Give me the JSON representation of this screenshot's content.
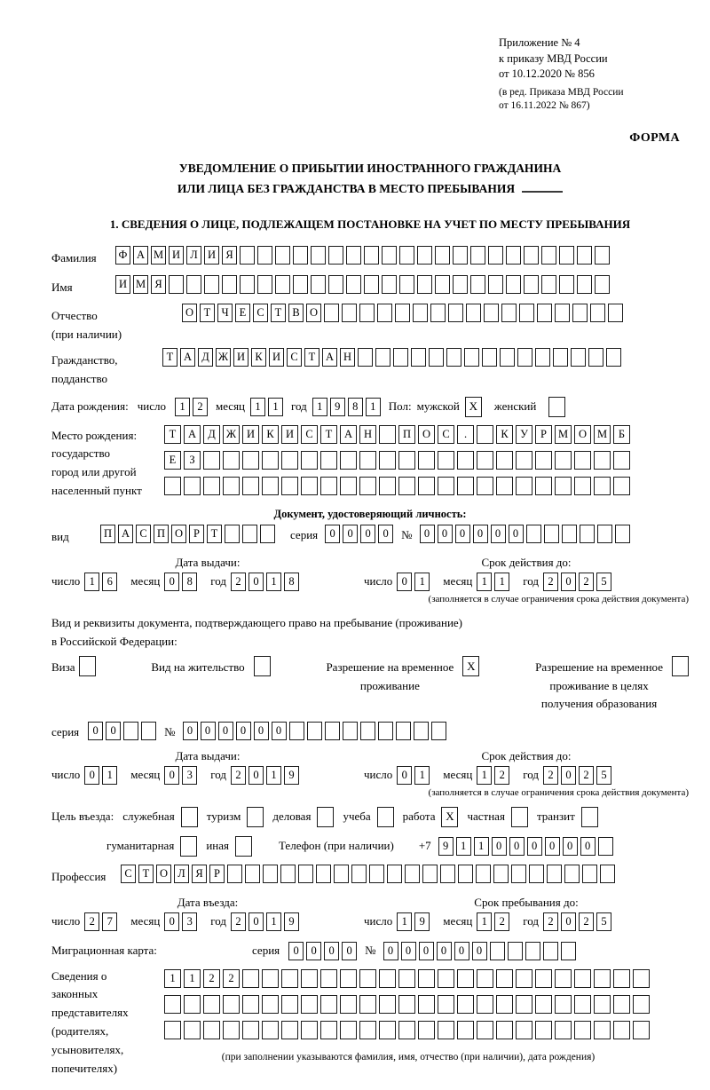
{
  "header": {
    "appendix1": "Приложение № 4",
    "appendix2": "к приказу МВД России",
    "appendix3": "от 10.12.2020 № 856",
    "edition1": "(в ред. Приказа МВД России",
    "edition2": "от 16.11.2022 № 867)",
    "forma": "ФОРМА"
  },
  "title": {
    "line1": "УВЕДОМЛЕНИЕ О ПРИБЫТИИ ИНОСТРАННОГО ГРАЖДАНИНА",
    "line2": "ИЛИ ЛИЦА БЕЗ ГРАЖДАНСТВА В МЕСТО ПРЕБЫВАНИЯ"
  },
  "section1_heading": "1. СВЕДЕНИЯ О ЛИЦЕ, ПОДЛЕЖАЩЕМ ПОСТАНОВКЕ НА УЧЕТ ПО МЕСТУ ПРЕБЫВАНИЯ",
  "person": {
    "surname": {
      "label": "Фамилия",
      "value": "ФАМИЛИЯ",
      "count": 28
    },
    "firstname": {
      "label": "Имя",
      "value": "ИМЯ",
      "count": 28
    },
    "patronymic": {
      "label": "Отчество",
      "sublabel": "(при наличии)",
      "value": "ОТЧЕСТВО",
      "count": 25
    },
    "citizenship": {
      "label": "Гражданство,",
      "sublabel": "подданство",
      "value": "ТАДЖИКИСТАН",
      "count": 26
    },
    "birthdate": {
      "label": "Дата рождения:",
      "day_label": "число",
      "day": {
        "value": "12",
        "count": 2
      },
      "month_label": "месяц",
      "month": {
        "value": "11",
        "count": 2
      },
      "year_label": "год",
      "year": {
        "value": "1981",
        "count": 4
      }
    },
    "sex": {
      "label": "Пол:",
      "male_label": "мужской",
      "male_mark": "X",
      "female_label": "женский",
      "female_mark": ""
    },
    "birthplace": {
      "label1": "Место рождения:",
      "label2": "государство",
      "label3": "город или другой",
      "label4": "населенный пункт",
      "row1": {
        "value": "ТАДЖИКИСТАН ПОС. КУРМОМБ",
        "count": 24
      },
      "row2": {
        "value": "ЕЗ",
        "count": 24
      },
      "row3": {
        "value": "",
        "count": 24
      }
    }
  },
  "iddoc": {
    "heading": "Документ, удостоверяющий личность:",
    "kind_label": "вид",
    "kind": {
      "value": "ПАСПОРТ",
      "count": 10
    },
    "series_label": "серия",
    "series": {
      "value": "0000",
      "count": 4
    },
    "number_label": "№",
    "number": {
      "value": "000000",
      "count": 12
    },
    "issue_label": "Дата выдачи:",
    "issue": {
      "day_label": "число",
      "day": {
        "value": "16",
        "count": 2
      },
      "month_label": "месяц",
      "month": {
        "value": "08",
        "count": 2
      },
      "year_label": "год",
      "year": {
        "value": "2018",
        "count": 4
      }
    },
    "expiry_label": "Срок действия до:",
    "expiry": {
      "day_label": "число",
      "day": {
        "value": "01",
        "count": 2
      },
      "month_label": "месяц",
      "month": {
        "value": "11",
        "count": 2
      },
      "year_label": "год",
      "year": {
        "value": "2025",
        "count": 4
      }
    },
    "note": "(заполняется в случае ограничения срока действия документа)"
  },
  "staydoc": {
    "intro1": "Вид и реквизиты документа, подтверждающего право на пребывание (проживание)",
    "intro2": "в Российской Федерации:",
    "opt_visa": {
      "label": "Виза",
      "mark": ""
    },
    "opt_residence": {
      "label": "Вид на жительство",
      "mark": ""
    },
    "opt_rvp": {
      "line1": "Разрешение на временное",
      "line2": "проживание",
      "mark": "X"
    },
    "opt_rvp_edu": {
      "line1": "Разрешение на временное",
      "line2": "проживание в целях",
      "line3": "получения образования",
      "mark": ""
    },
    "series_label": "серия",
    "series": {
      "value": "00",
      "count": 4
    },
    "number_label": "№",
    "number": {
      "value": "000000",
      "count": 15
    },
    "issue_label": "Дата выдачи:",
    "issue": {
      "day_label": "число",
      "day": {
        "value": "01",
        "count": 2
      },
      "month_label": "месяц",
      "month": {
        "value": "03",
        "count": 2
      },
      "year_label": "год",
      "year": {
        "value": "2019",
        "count": 4
      }
    },
    "expiry_label": "Срок действия до:",
    "expiry": {
      "day_label": "число",
      "day": {
        "value": "01",
        "count": 2
      },
      "month_label": "месяц",
      "month": {
        "value": "12",
        "count": 2
      },
      "year_label": "год",
      "year": {
        "value": "2025",
        "count": 4
      }
    },
    "note": "(заполняется в случае ограничения срока действия документа)"
  },
  "purpose": {
    "label": "Цель въезда:",
    "opt1": {
      "label": "служебная",
      "mark": ""
    },
    "opt2": {
      "label": "туризм",
      "mark": ""
    },
    "opt3": {
      "label": "деловая",
      "mark": ""
    },
    "opt4": {
      "label": "учеба",
      "mark": ""
    },
    "opt5": {
      "label": "работа",
      "mark": "X"
    },
    "opt6": {
      "label": "частная",
      "mark": ""
    },
    "opt7": {
      "label": "транзит",
      "mark": ""
    },
    "opt8": {
      "label": "гуманитарная",
      "mark": ""
    },
    "opt9": {
      "label": "иная",
      "mark": ""
    },
    "phone_label": "Телефон (при наличии)",
    "phone_prefix": "+7",
    "phone": {
      "value": "911000000",
      "count": 10
    }
  },
  "profession": {
    "label": "Профессия",
    "value": "СТОЛЯР",
    "count": 28
  },
  "entry": {
    "date_label": "Дата въезда:",
    "date": {
      "day_label": "число",
      "day": {
        "value": "27",
        "count": 2
      },
      "month_label": "месяц",
      "month": {
        "value": "03",
        "count": 2
      },
      "year_label": "год",
      "year": {
        "value": "2019",
        "count": 4
      }
    },
    "until_label": "Срок пребывания до:",
    "until": {
      "day_label": "число",
      "day": {
        "value": "19",
        "count": 2
      },
      "month_label": "месяц",
      "month": {
        "value": "12",
        "count": 2
      },
      "year_label": "год",
      "year": {
        "value": "2025",
        "count": 4
      }
    }
  },
  "migration_card": {
    "label": "Миграционная карта:",
    "series_label": "серия",
    "series": {
      "value": "0000",
      "count": 4
    },
    "number_label": "№",
    "number": {
      "value": "000000",
      "count": 11
    }
  },
  "representatives": {
    "label1": "Сведения о",
    "label2": "законных",
    "label3": "представителях",
    "label4": "(родителях,",
    "label5": "усыновителях,",
    "label6": "попечителях)",
    "row1": {
      "value": "1122",
      "count": 25
    },
    "row2": {
      "value": "",
      "count": 25
    },
    "row3": {
      "value": "",
      "count": 25
    },
    "note": "(при заполнении указываются фамилия, имя, отчество (при наличии), дата рождения)"
  }
}
